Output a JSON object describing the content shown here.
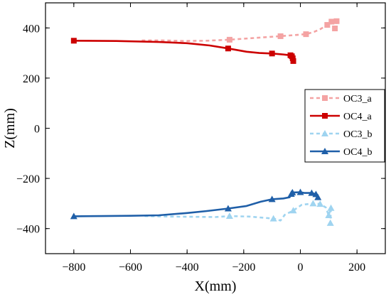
{
  "chart_data": {
    "type": "line",
    "xlabel": "X(mm)",
    "ylabel": "Z(mm)",
    "xlim": [
      -900,
      300
    ],
    "ylim": [
      -500,
      500
    ],
    "x_ticks": [
      -800,
      -600,
      -400,
      -200,
      0,
      200
    ],
    "y_ticks": [
      -400,
      -200,
      0,
      200,
      400
    ],
    "grid": false,
    "legend_position": "right",
    "series": [
      {
        "name": "OC3_a",
        "color": "#f4a3a3",
        "dash": true,
        "marker": "square",
        "x": [
          -560,
          -490,
          -410,
          -330,
          -250,
          -160,
          -70,
          20,
          50,
          70,
          95,
          110,
          120,
          128,
          128,
          122
        ],
        "y": [
          350,
          350,
          348,
          349,
          353,
          360,
          367,
          375,
          385,
          395,
          412,
          425,
          432,
          427,
          408,
          398
        ],
        "markers_at": [
          -250,
          -70,
          20,
          95,
          110,
          128,
          122
        ]
      },
      {
        "name": "OC4_a",
        "color": "#cc0000",
        "dash": false,
        "marker": "square",
        "x": [
          -800,
          -650,
          -500,
          -400,
          -320,
          -255,
          -190,
          -145,
          -100,
          -60,
          -35,
          -30,
          -27,
          -25
        ],
        "y": [
          349,
          348,
          344,
          339,
          330,
          318,
          305,
          300,
          298,
          294,
          291,
          287,
          279,
          268
        ],
        "markers_at": [
          -800,
          -255,
          -100,
          -35,
          -30,
          -27,
          -25
        ]
      },
      {
        "name": "OC3_b",
        "color": "#9fd4f0",
        "dash": true,
        "marker": "triangle",
        "x": [
          -550,
          -460,
          -380,
          -300,
          -250,
          -180,
          -95,
          -70,
          -55,
          -25,
          5,
          45,
          70,
          90,
          100,
          108,
          106
        ],
        "y": [
          -350,
          -352,
          -353,
          -354,
          -350,
          -352,
          -360,
          -368,
          -345,
          -328,
          -305,
          -300,
          -302,
          -316,
          -347,
          -318,
          -378
        ],
        "markers_at": [
          -250,
          -95,
          -25,
          45,
          70,
          100,
          108,
          106
        ]
      },
      {
        "name": "OC4_b",
        "color": "#1f5fa8",
        "dash": false,
        "marker": "triangle",
        "x": [
          -800,
          -700,
          -600,
          -500,
          -400,
          -330,
          -255,
          -190,
          -140,
          -100,
          -60,
          -38,
          -32,
          -28,
          0,
          15,
          40,
          55,
          62,
          62
        ],
        "y": [
          -351,
          -350,
          -349,
          -347,
          -338,
          -330,
          -320,
          -310,
          -293,
          -283,
          -280,
          -275,
          -262,
          -256,
          -255,
          -258,
          -258,
          -263,
          -275,
          -285
        ],
        "markers_at": [
          -800,
          -255,
          -100,
          -32,
          -28,
          0,
          40,
          55,
          62
        ]
      }
    ]
  }
}
